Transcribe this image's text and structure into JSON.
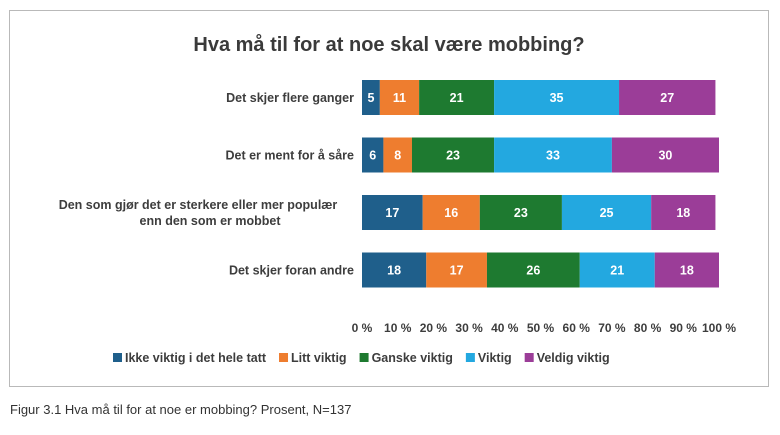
{
  "caption": "Figur 3.1  Hva må til for at noe er mobbing? Prosent, N=137",
  "chart_data": {
    "type": "bar",
    "orientation": "horizontal",
    "stacked": true,
    "title": "Hva må til for at noe skal være mobbing?",
    "categories": [
      [
        "Det skjer flere ganger"
      ],
      [
        "Det er ment for å såre"
      ],
      [
        "Den som gjør det er sterkere eller mer populær",
        "enn den som er mobbet"
      ],
      [
        "Det skjer foran andre"
      ]
    ],
    "series": [
      {
        "name": "Ikke viktig i det hele tatt",
        "color": "#1f5f8b",
        "values": [
          5,
          6,
          17,
          18
        ]
      },
      {
        "name": "Litt viktig",
        "color": "#ee7d2f",
        "values": [
          11,
          8,
          16,
          17
        ]
      },
      {
        "name": "Ganske viktig",
        "color": "#1e7a30",
        "values": [
          21,
          23,
          23,
          26
        ]
      },
      {
        "name": "Viktig",
        "color": "#23a8e0",
        "values": [
          35,
          33,
          25,
          21
        ]
      },
      {
        "name": "Veldig viktig",
        "color": "#9b3d98",
        "values": [
          27,
          30,
          18,
          18
        ]
      }
    ],
    "xlim": [
      0,
      100
    ],
    "xticks": [
      "0 %",
      "10 %",
      "20 %",
      "30 %",
      "40 %",
      "50 %",
      "60 %",
      "70 %",
      "80 %",
      "90 %",
      "100 %"
    ],
    "legend_position": "bottom"
  }
}
